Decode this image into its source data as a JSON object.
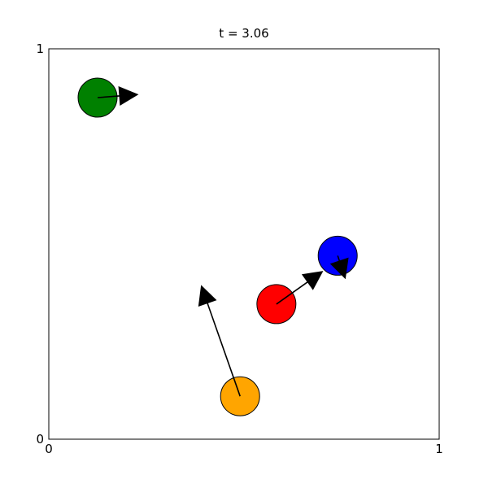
{
  "chart_data": {
    "type": "scatter",
    "title": "t = 3.06",
    "xlabel": "",
    "ylabel": "",
    "xlim": [
      0,
      1
    ],
    "ylim": [
      0,
      1
    ],
    "x_ticks": [
      "0",
      "1"
    ],
    "y_ticks": [
      "0",
      "1"
    ],
    "grid": false,
    "particles": [
      {
        "color": "#008000",
        "x": 0.125,
        "y": 0.875,
        "vx": 0.105,
        "vy": 0.008
      },
      {
        "color": "#0000ff",
        "x": 0.74,
        "y": 0.47,
        "vx": 0.02,
        "vy": -0.06
      },
      {
        "color": "#ff0000",
        "x": 0.583,
        "y": 0.346,
        "vx": 0.12,
        "vy": 0.085
      },
      {
        "color": "#ffa500",
        "x": 0.49,
        "y": 0.11,
        "vx": -0.1,
        "vy": 0.285
      }
    ],
    "particle_radius": 0.05
  }
}
